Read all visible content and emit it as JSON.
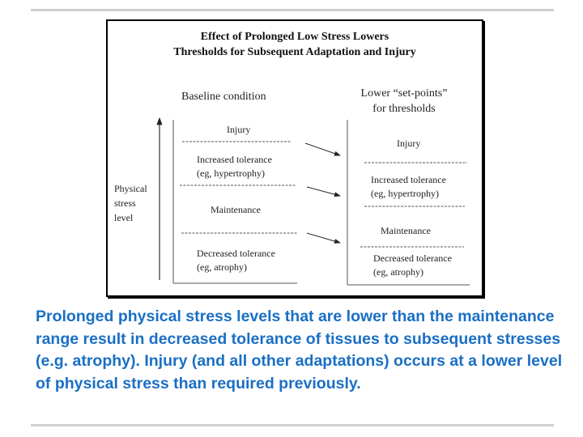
{
  "figure": {
    "title_line1": "Effect of Prolonged Low Stress Lowers",
    "title_line2": "Thresholds for Subsequent Adaptation and Injury",
    "axis_label": [
      "Physical",
      "stress",
      "level"
    ],
    "baseline": {
      "heading": "Baseline condition",
      "injury": "Injury",
      "increased": [
        "Increased tolerance",
        "(eg, hypertrophy)"
      ],
      "maintenance": "Maintenance",
      "decreased": [
        "Decreased tolerance",
        "(eg, atrophy)"
      ]
    },
    "lower": {
      "heading": [
        "Lower “set-points”",
        "for thresholds"
      ],
      "injury": "Injury",
      "increased": [
        "Increased tolerance",
        "(eg, hypertrophy)"
      ],
      "maintenance": "Maintenance",
      "decreased": [
        "Decreased tolerance",
        "(eg, atrophy)"
      ]
    }
  },
  "caption": "Prolonged physical stress levels that are lower than the maintenance range result in decreased tolerance of tissues to subsequent stresses (e.g. atrophy). Injury (and all other adaptations) occurs at a lower level of physical stress than required previously.",
  "colors": {
    "caption": "#1a6fc4",
    "rule": "#d0d0d0"
  }
}
